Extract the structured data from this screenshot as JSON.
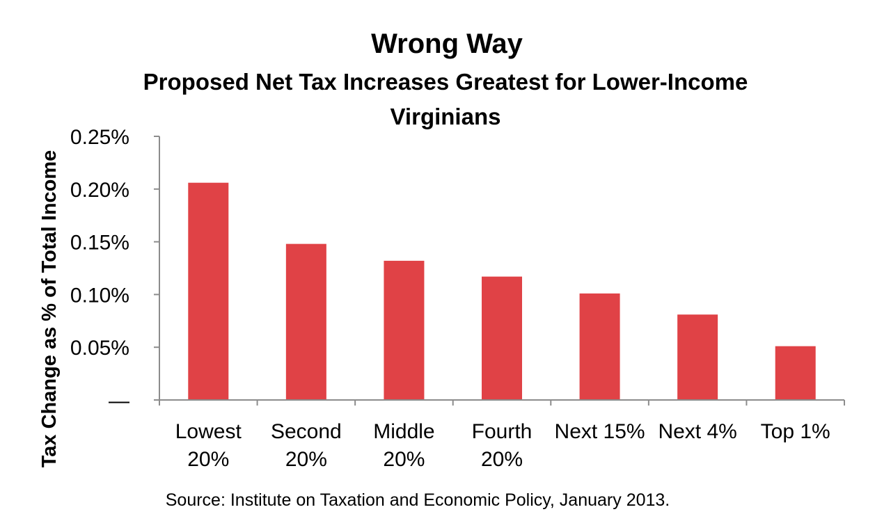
{
  "chart_data": {
    "type": "bar",
    "title": "Wrong Way",
    "subtitle_lines": [
      "Proposed Net Tax Increases Greatest for Lower-Income",
      "Virginians"
    ],
    "ylabel": "Tax Change as % of Total Income",
    "xlabel": "",
    "categories": [
      [
        "Lowest",
        "20%"
      ],
      [
        "Second",
        "20%"
      ],
      [
        "Middle",
        "20%"
      ],
      [
        "Fourth",
        "20%"
      ],
      [
        "Next 15%"
      ],
      [
        "Next 4%"
      ],
      [
        "Top 1%"
      ]
    ],
    "values": [
      0.00206,
      0.00148,
      0.00132,
      0.00117,
      0.00101,
      0.00081,
      0.00051
    ],
    "ylim": [
      0,
      0.0025
    ],
    "yticks": [
      0,
      0.0005,
      0.001,
      0.0015,
      0.002,
      0.0025
    ],
    "ytick_labels": [
      "—",
      "0.05%",
      "0.10%",
      "0.15%",
      "0.20%",
      "0.25%"
    ],
    "bar_color": "#e04246",
    "grid": false,
    "legend": "none",
    "source": "Source: Institute on Taxation and Economic Policy, January 2013."
  }
}
